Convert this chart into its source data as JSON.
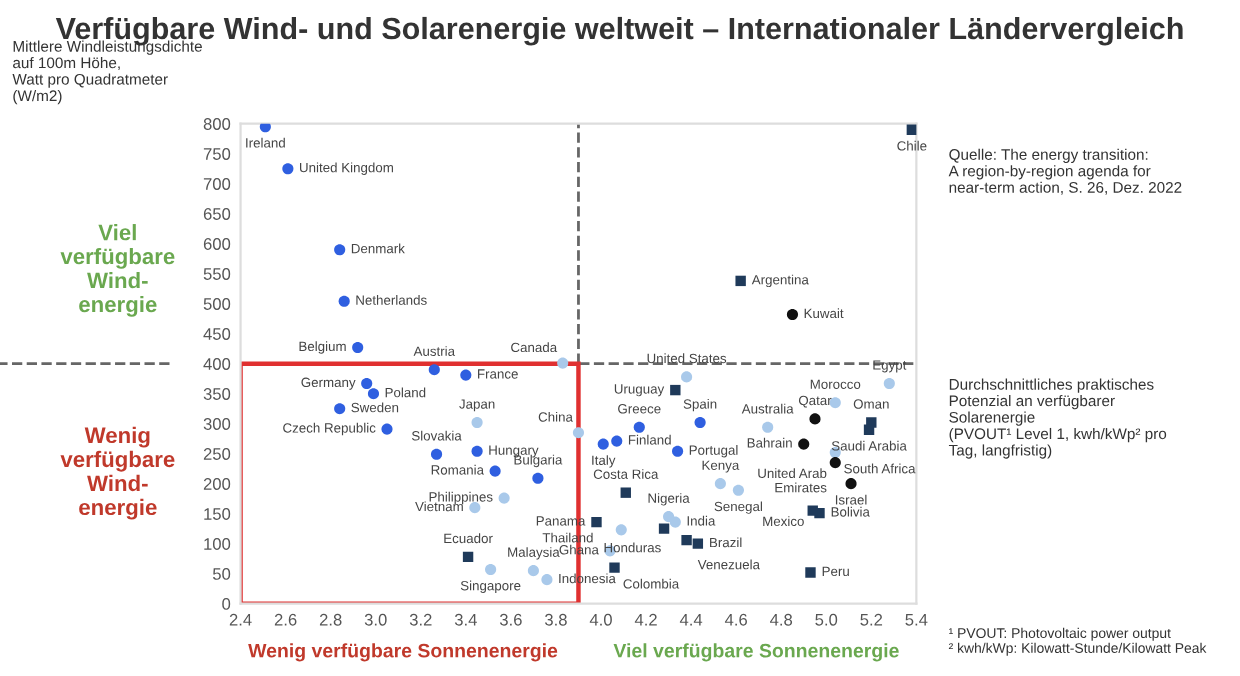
{
  "chart_data": {
    "type": "scatter",
    "title": "Verfügbare Wind- und Solarenergie weltweit – Internationaler Ländervergleich",
    "ylabel": "Mittlere Windleistungsdichte\nauf 100m Höhe,\nWatt pro Quadratmeter\n(W/m2)",
    "xlabel": "Durchschnittliches praktisches\nPotenzial an verfügbarer\nSolarenergie\n(PVOUT¹ Level 1, kwh/kWp² pro\nTag, langfristig)",
    "xlim": [
      2.4,
      5.4
    ],
    "xticks": [
      2.4,
      2.6,
      2.8,
      {
        "value": 3,
        "label": "3.0"
      },
      3.2,
      3.4,
      3.6,
      3.8,
      {
        "value": 4,
        "label": "4.0"
      },
      4.2,
      4.4,
      4.6,
      4.8,
      {
        "value": 5,
        "label": "5.0"
      },
      5.2,
      5.4
    ],
    "ylim": [
      0,
      800
    ],
    "yticks": [
      0,
      50,
      100,
      150,
      200,
      250,
      300,
      350,
      400,
      450,
      500,
      550,
      600,
      650,
      700,
      750,
      800
    ],
    "grid": false,
    "ref_lines": [
      {
        "axis": "x",
        "value": 3.9,
        "color": "#666666",
        "line_style": "dashed"
      },
      {
        "axis": "y",
        "value": 400,
        "color": "#666666",
        "line_style": "dashed"
      }
    ],
    "series": [
      {
        "color": "#2f5fe0",
        "marker": "circle",
        "x": [
          2.51,
          2.61,
          2.84,
          2.86,
          2.92,
          3.26,
          3.4,
          2.96,
          2.99,
          2.84,
          3.05,
          3.27,
          3.45,
          3.53,
          3.72,
          4.01,
          4.07,
          4.17,
          4.44,
          4.34
        ],
        "values": [
          795,
          725,
          590,
          504,
          427,
          390,
          381,
          367,
          350,
          325,
          291,
          249,
          254,
          221,
          209,
          266,
          271,
          294,
          302,
          254
        ]
      },
      {
        "color": "#a9c9ea",
        "marker": "circle",
        "x": [
          3.83,
          3.45,
          3.9,
          3.57,
          3.44,
          3.51,
          3.7,
          3.76,
          4.09,
          4.04,
          4.33,
          4.3,
          4.38,
          4.53,
          4.61,
          4.74,
          5.04,
          5.28,
          5.04
        ],
        "values": [
          401,
          302,
          285,
          176,
          160,
          57,
          55,
          40,
          123,
          88,
          136,
          145,
          378,
          200,
          189,
          294,
          335,
          367,
          252
        ]
      },
      {
        "color": "#1f3a5a",
        "marker": "square",
        "x": [
          3.41,
          3.98,
          4.28,
          4.06,
          4.43,
          4.38,
          4.11,
          4.33,
          5.2,
          5.19,
          4.97,
          4.94,
          4.93,
          4.62,
          5.38
        ],
        "values": [
          78,
          136,
          125,
          60,
          100,
          106,
          185,
          356,
          302,
          290,
          151,
          155,
          52,
          538,
          790
        ]
      },
      {
        "color": "#111111",
        "marker": "circle",
        "x": [
          4.95,
          4.9,
          5.04,
          5.11,
          4.85
        ],
        "values": [
          308,
          266,
          235,
          200,
          482
        ]
      }
    ],
    "annotations": [
      "Viel\nverfügbare\nWind-\nenergie",
      "Wenig\nverfügbare\nWind-\nenergie",
      "Wenig verfügbare Sonnenenergie",
      "Viel verfügbare Sonnenenergie",
      "Quelle: The energy transition:\nA region-by-region agenda for\nnear-term action, S. 26, Dez. 2022",
      "¹ PVOUT: Photovoltaic power output\n² kwh/kWp: Kilowatt-Stunde/Kilowatt Peak",
      {
        "text": "Ireland",
        "x": 2.51,
        "y": 795
      },
      {
        "text": "United Kingdom",
        "x": 2.61,
        "y": 725
      },
      {
        "text": "Denmark",
        "x": 2.84,
        "y": 590
      },
      {
        "text": "Netherlands",
        "x": 2.86,
        "y": 504
      },
      {
        "text": "Belgium",
        "x": 2.92,
        "y": 427
      },
      {
        "text": "Austria",
        "x": 3.26,
        "y": 390
      },
      {
        "text": "France",
        "x": 3.4,
        "y": 381
      },
      {
        "text": "Germany",
        "x": 2.96,
        "y": 367
      },
      {
        "text": "Poland",
        "x": 2.99,
        "y": 350
      },
      {
        "text": "Sweden",
        "x": 2.84,
        "y": 325
      },
      {
        "text": "Czech Republic",
        "x": 3.05,
        "y": 291
      },
      {
        "text": "Slovakia",
        "x": 3.27,
        "y": 249
      },
      {
        "text": "Hungary",
        "x": 3.45,
        "y": 254
      },
      {
        "text": "Romania",
        "x": 3.53,
        "y": 221
      },
      {
        "text": "Bulgaria",
        "x": 3.72,
        "y": 209
      },
      {
        "text": "Italy",
        "x": 4.01,
        "y": 266
      },
      {
        "text": "Finland",
        "x": 4.07,
        "y": 271
      },
      {
        "text": "Greece",
        "x": 4.17,
        "y": 294
      },
      {
        "text": "Spain",
        "x": 4.44,
        "y": 302
      },
      {
        "text": "Portugal",
        "x": 4.34,
        "y": 254
      },
      {
        "text": "Canada",
        "x": 3.83,
        "y": 401
      },
      {
        "text": "Japan",
        "x": 3.45,
        "y": 302
      },
      {
        "text": "China",
        "x": 3.9,
        "y": 285
      },
      {
        "text": "Philippines",
        "x": 3.57,
        "y": 176
      },
      {
        "text": "Vietnam",
        "x": 3.44,
        "y": 160
      },
      {
        "text": "Singapore",
        "x": 3.51,
        "y": 57
      },
      {
        "text": "Malaysia",
        "x": 3.7,
        "y": 55
      },
      {
        "text": "Indonesia",
        "x": 3.76,
        "y": 40
      },
      {
        "text": "Thailand",
        "x": 4.09,
        "y": 123
      },
      {
        "text": "Ghana",
        "x": 4.04,
        "y": 88
      },
      {
        "text": "India",
        "x": 4.33,
        "y": 136
      },
      {
        "text": "Nigeria",
        "x": 4.3,
        "y": 145
      },
      {
        "text": "United States",
        "x": 4.38,
        "y": 378
      },
      {
        "text": "Kenya",
        "x": 4.53,
        "y": 200
      },
      {
        "text": "Senegal",
        "x": 4.61,
        "y": 189
      },
      {
        "text": "Australia",
        "x": 4.74,
        "y": 294
      },
      {
        "text": "Morocco",
        "x": 5.04,
        "y": 335
      },
      {
        "text": "Egypt",
        "x": 5.28,
        "y": 367
      },
      {
        "text": "South Africa",
        "x": 5.04,
        "y": 252
      },
      {
        "text": "Ecuador",
        "x": 3.41,
        "y": 78
      },
      {
        "text": "Panama",
        "x": 3.98,
        "y": 136
      },
      {
        "text": "Honduras",
        "x": 4.28,
        "y": 125
      },
      {
        "text": "Colombia",
        "x": 4.06,
        "y": 60
      },
      {
        "text": "Brazil",
        "x": 4.43,
        "y": 100
      },
      {
        "text": "Venezuela",
        "x": 4.38,
        "y": 106
      },
      {
        "text": "Costa Rica",
        "x": 4.11,
        "y": 185
      },
      {
        "text": "Uruguay",
        "x": 4.33,
        "y": 356
      },
      {
        "text": "Oman",
        "x": 5.2,
        "y": 302
      },
      {
        "text": "Saudi Arabia",
        "x": 5.19,
        "y": 290
      },
      {
        "text": "Bolivia",
        "x": 4.97,
        "y": 151
      },
      {
        "text": "Mexico",
        "x": 4.94,
        "y": 155
      },
      {
        "text": "Peru",
        "x": 4.93,
        "y": 52
      },
      {
        "text": "Argentina",
        "x": 4.62,
        "y": 538
      },
      {
        "text": "Chile",
        "x": 5.38,
        "y": 790
      },
      {
        "text": "Qatar",
        "x": 4.95,
        "y": 308
      },
      {
        "text": "Bahrain",
        "x": 4.9,
        "y": 266
      },
      {
        "text": "United Arab\nEmirates",
        "x": 5.04,
        "y": 235
      },
      {
        "text": "Israel",
        "x": 5.11,
        "y": 200
      },
      {
        "text": "Kuwait",
        "x": 4.85,
        "y": 482
      }
    ]
  }
}
